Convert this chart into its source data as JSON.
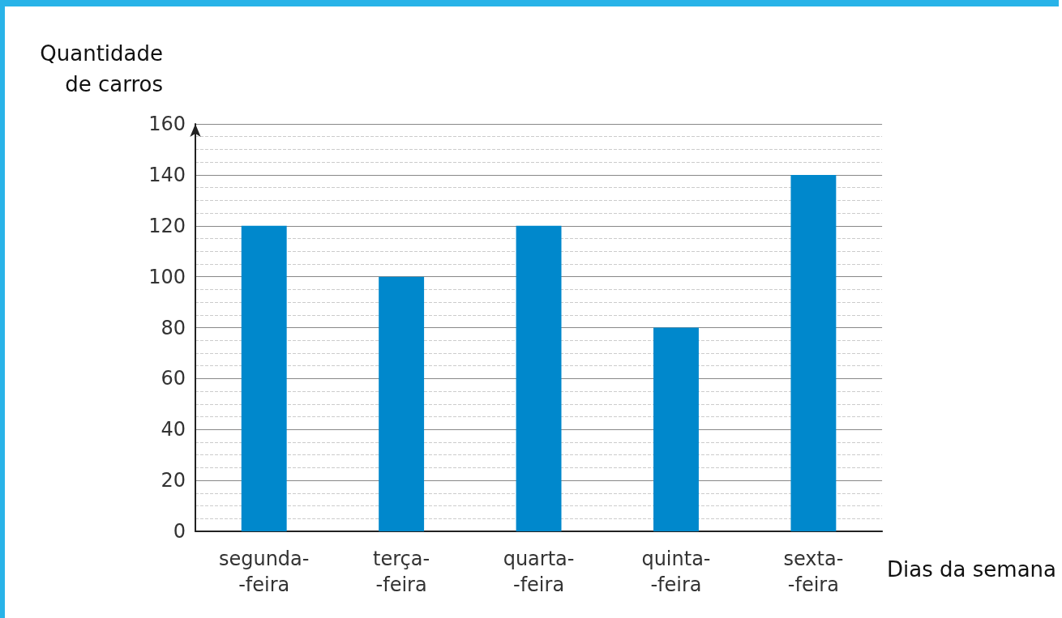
{
  "chart_data": {
    "type": "bar",
    "xlabel": "Dias da semana",
    "ylabel": "Quantidade\nde carros",
    "categories": [
      "segunda-\n-feira",
      "terça-\n-feira",
      "quarta-\n-feira",
      "quinta-\n-feira",
      "sexta-\n-feira"
    ],
    "values": [
      120,
      100,
      120,
      80,
      140
    ],
    "color": "#0088cc",
    "ylim": [
      0,
      160
    ],
    "yticks": [
      0,
      20,
      40,
      60,
      80,
      100,
      120,
      140,
      160
    ],
    "grid": "y"
  }
}
